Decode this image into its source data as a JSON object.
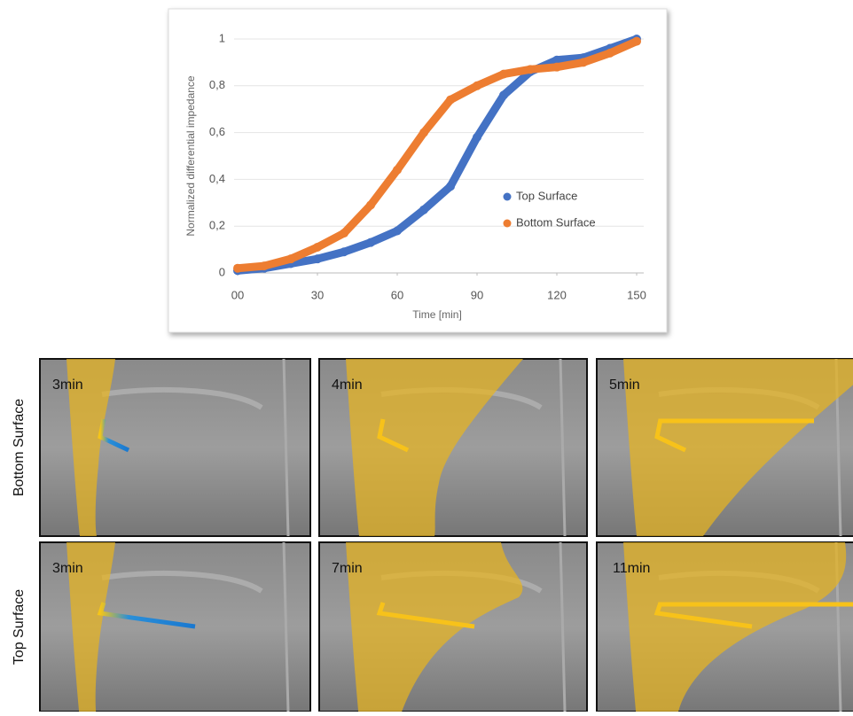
{
  "chart_data": {
    "type": "scatter",
    "y_label": "Normalized differential impedance",
    "x_label": "Time [min]",
    "x": [
      0,
      10,
      20,
      30,
      40,
      50,
      60,
      70,
      80,
      90,
      100,
      110,
      120,
      130,
      140,
      150
    ],
    "series": [
      {
        "name": "Top Surface",
        "color": "#4472c4",
        "values": [
          0.01,
          0.02,
          0.04,
          0.06,
          0.09,
          0.13,
          0.18,
          0.27,
          0.37,
          0.58,
          0.76,
          0.86,
          0.91,
          0.92,
          0.96,
          1.0
        ]
      },
      {
        "name": "Bottom Surface",
        "color": "#ed7d31",
        "values": [
          0.02,
          0.03,
          0.06,
          0.11,
          0.17,
          0.29,
          0.44,
          0.6,
          0.74,
          0.8,
          0.85,
          0.87,
          0.88,
          0.9,
          0.94,
          0.99
        ]
      }
    ],
    "xlim": [
      0,
      150
    ],
    "xticks": [
      {
        "value": 0,
        "label": "00"
      },
      30,
      60,
      90,
      120,
      150
    ],
    "ylim": [
      0,
      1
    ],
    "yticks": [
      0,
      {
        "value": 0.2,
        "label": "0,2"
      },
      {
        "value": 0.4,
        "label": "0,4"
      },
      {
        "value": 0.6,
        "label": "0,6"
      },
      {
        "value": 0.8,
        "label": "0,8"
      },
      1
    ],
    "grid": true,
    "legend": "right"
  },
  "panels": {
    "rows": [
      {
        "label": "Bottom Surface",
        "times": [
          "3min",
          "4min",
          "5min"
        ]
      },
      {
        "label": "Top Surface",
        "times": [
          "3min",
          "7min",
          "11min"
        ]
      }
    ]
  }
}
